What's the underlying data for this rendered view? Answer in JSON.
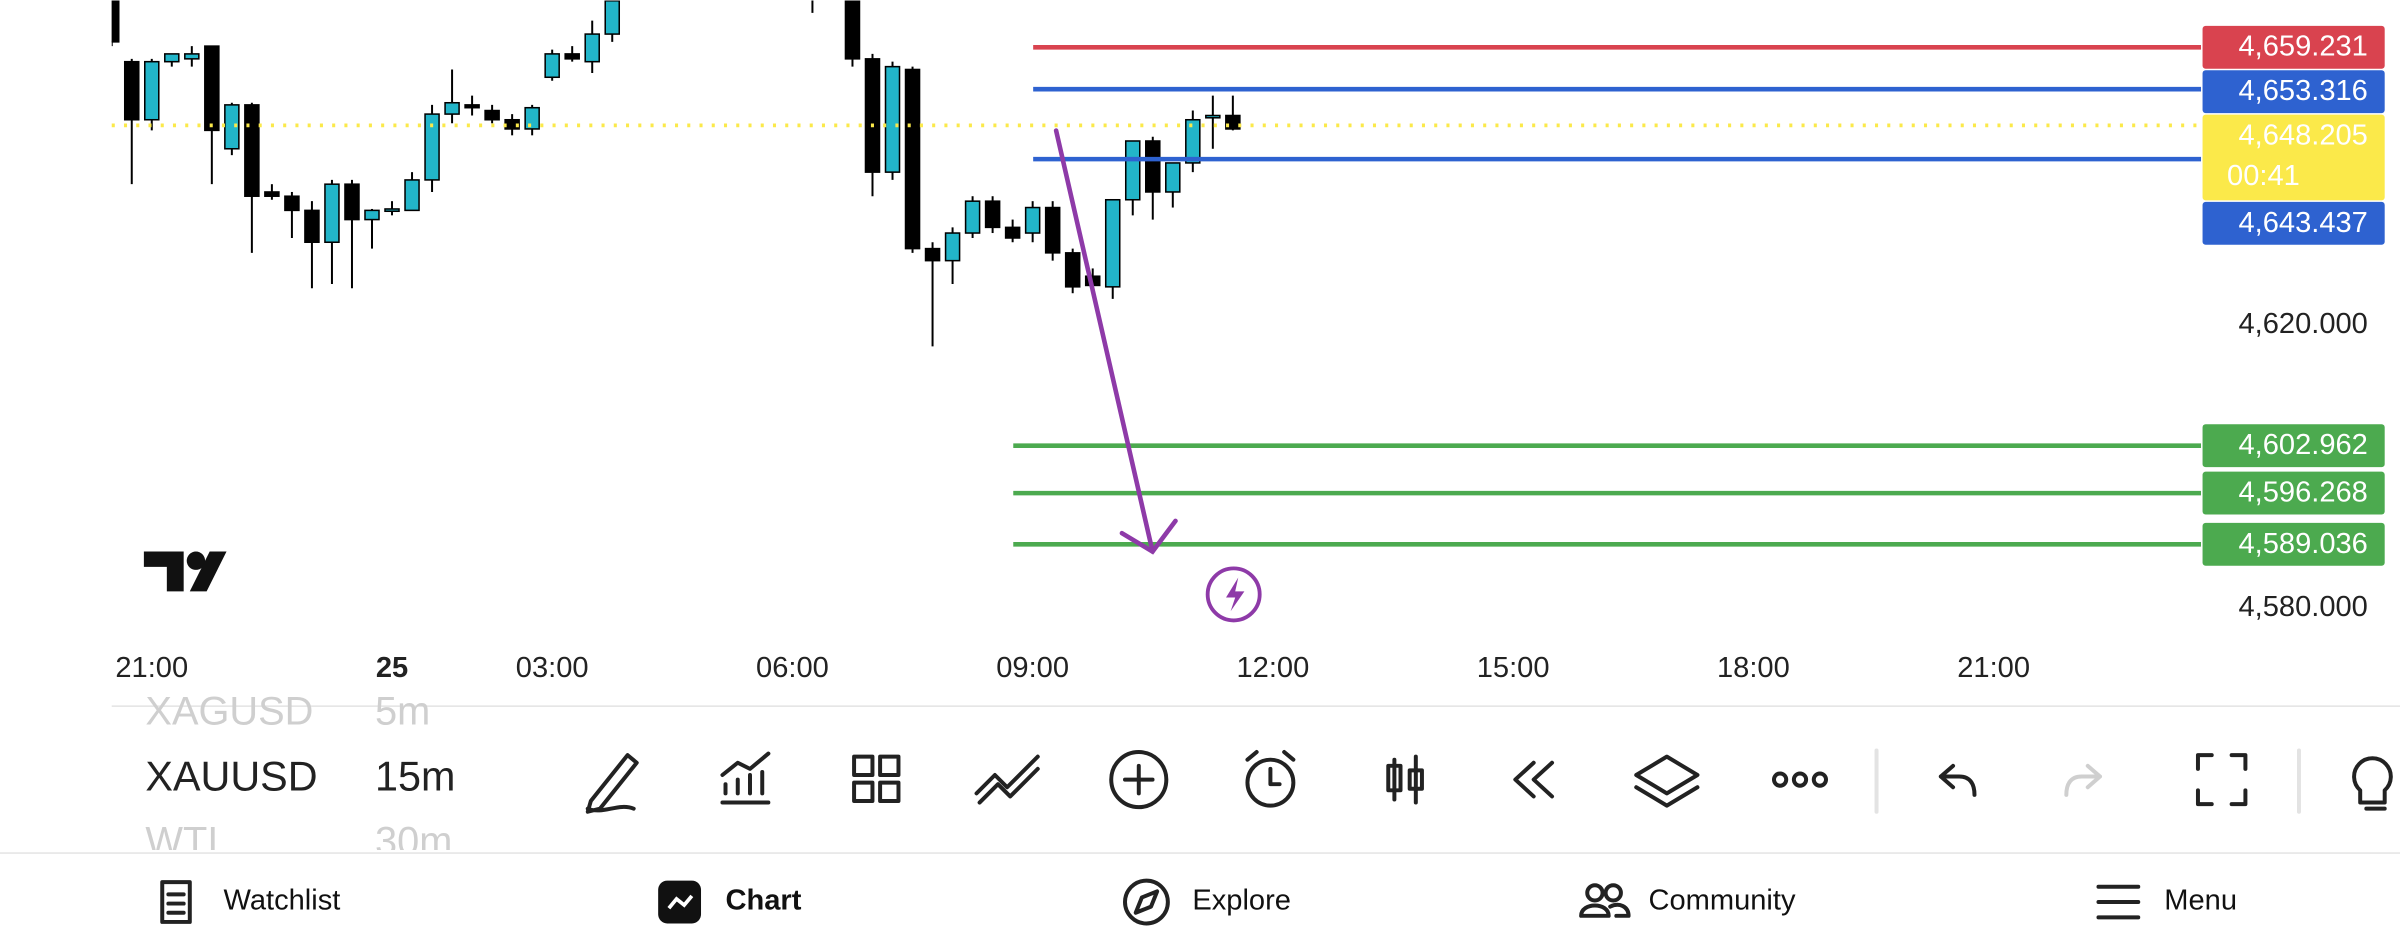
{
  "chart_data": {
    "type": "candlestick",
    "x": [
      0,
      1,
      2,
      3,
      4,
      5,
      6,
      7,
      8,
      9,
      10,
      11,
      12,
      13,
      14,
      15,
      16,
      17,
      18,
      19,
      20,
      21,
      22,
      23,
      24,
      25,
      35,
      37,
      38,
      39,
      40,
      41,
      42,
      43,
      44,
      45,
      46,
      47,
      48,
      49,
      50,
      51,
      52,
      53,
      54,
      55,
      56
    ],
    "open": [
      4669.0,
      4657.2,
      4649.0,
      4657.2,
      4657.6,
      4659.4,
      4644.9,
      4651.1,
      4638.8,
      4638.2,
      4636.2,
      4631.7,
      4639.9,
      4634.9,
      4636.2,
      4636.2,
      4640.5,
      4649.8,
      4651.1,
      4650.3,
      4649.0,
      4647.7,
      4655.0,
      4658.3,
      4657.2,
      4661.1,
      4669.0,
      4668.0,
      4657.6,
      4641.6,
      4656.1,
      4630.8,
      4629.1,
      4633.0,
      4637.5,
      4633.8,
      4633.0,
      4636.6,
      4630.2,
      4626.9,
      4625.4,
      4637.7,
      4646.0,
      4638.8,
      4642.9,
      4649.4,
      4649.6
    ],
    "high": [
      4670.0,
      4657.6,
      4657.6,
      4658.3,
      4659.4,
      4659.4,
      4651.4,
      4651.4,
      4639.9,
      4638.8,
      4637.5,
      4640.5,
      4640.5,
      4636.4,
      4637.5,
      4641.6,
      4651.1,
      4656.1,
      4652.4,
      4651.1,
      4649.8,
      4651.1,
      4658.9,
      4659.4,
      4663.0,
      4666.5,
      4670.0,
      4670.0,
      4658.3,
      4657.2,
      4656.5,
      4631.7,
      4633.8,
      4638.2,
      4638.2,
      4634.9,
      4637.5,
      4637.5,
      4630.8,
      4628.0,
      4637.7,
      4646.0,
      4646.6,
      4642.9,
      4650.3,
      4652.4,
      4652.4
    ],
    "low": [
      4659.4,
      4639.9,
      4647.5,
      4656.5,
      4656.5,
      4639.9,
      4644.0,
      4630.2,
      4637.7,
      4632.3,
      4625.2,
      4625.8,
      4625.2,
      4630.8,
      4635.5,
      4636.2,
      4638.8,
      4648.5,
      4649.6,
      4648.5,
      4646.8,
      4646.8,
      4654.5,
      4657.2,
      4655.6,
      4660.0,
      4664.1,
      4656.5,
      4638.2,
      4640.5,
      4630.2,
      4617.0,
      4625.8,
      4632.3,
      4633.0,
      4631.7,
      4631.7,
      4629.1,
      4624.5,
      4624.5,
      4623.7,
      4635.5,
      4634.9,
      4636.6,
      4641.6,
      4644.9,
      4647.5
    ],
    "close": [
      4660.0,
      4649.0,
      4657.2,
      4658.3,
      4658.3,
      4647.5,
      4651.1,
      4638.2,
      4638.2,
      4636.2,
      4631.7,
      4639.9,
      4634.9,
      4636.2,
      4636.4,
      4640.5,
      4649.8,
      4651.4,
      4650.7,
      4649.0,
      4647.7,
      4650.7,
      4658.3,
      4657.6,
      4661.1,
      4665.8,
      4667.0,
      4657.6,
      4641.6,
      4656.5,
      4630.8,
      4629.1,
      4633.0,
      4637.5,
      4633.8,
      4632.3,
      4636.6,
      4630.2,
      4625.4,
      4625.6,
      4637.7,
      4646.0,
      4638.8,
      4642.9,
      4649.0,
      4649.6,
      4647.7
    ],
    "up_color": "#22b5c9",
    "down_color": "#000000",
    "xlim": [
      0,
      104.36
    ],
    "ylim": [
      4566.4,
      4665.84
    ],
    "xticks": [
      {
        "value": 2,
        "label": "21:00"
      },
      {
        "value": 14,
        "label": "25"
      },
      {
        "value": 22,
        "label": "03:00"
      },
      {
        "value": 34,
        "label": "06:00"
      },
      {
        "value": 46,
        "label": "09:00"
      },
      {
        "value": 58,
        "label": "12:00"
      },
      {
        "value": 70,
        "label": "15:00"
      },
      {
        "value": 82,
        "label": "18:00"
      },
      {
        "value": 94,
        "label": "21:00"
      }
    ],
    "yticks": [
      {
        "value": 4620,
        "label": "4,620.000"
      },
      {
        "value": 4580,
        "label": "4,580.000"
      }
    ],
    "levels": [
      {
        "value": 4659.231,
        "label": "4,659.231",
        "color": "#d9434f"
      },
      {
        "value": 4653.316,
        "label": "4,653.316",
        "color": "#2e62d0"
      },
      {
        "value": 4643.437,
        "label": "4,643.437",
        "color": "#2e62d0"
      },
      {
        "value": 4602.962,
        "label": "4,602.962",
        "color": "#4caa4f"
      },
      {
        "value": 4596.268,
        "label": "4,596.268",
        "color": "#4caa4f"
      },
      {
        "value": 4589.036,
        "label": "4,589.036",
        "color": "#4caa4f"
      }
    ],
    "last_price": {
      "value": 4648.205,
      "label": "4,648.205",
      "countdown": "00:41",
      "color": "#fbe94a"
    }
  },
  "toolbar": {
    "symbols": [
      "XAGUSD",
      "XAUUSD",
      "WTI"
    ],
    "intervals": [
      "5m",
      "15m",
      "30m"
    ]
  },
  "nav": [
    "Watchlist",
    "Chart",
    "Explore",
    "Community",
    "Menu"
  ]
}
